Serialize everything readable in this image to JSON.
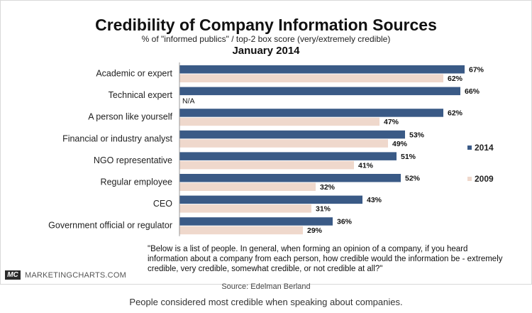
{
  "chart_data": {
    "type": "bar",
    "orientation": "horizontal",
    "title": "Credibility of Company Information Sources",
    "subtitle": "% of \"informed publics\" / top-2 box score (very/extremely credible)",
    "period": "January 2014",
    "categories": [
      "Academic or expert",
      "Technical expert",
      "A person like yourself",
      "Financial or industry analyst",
      "NGO representative",
      "Regular employee",
      "CEO",
      "Government official or regulator"
    ],
    "series": [
      {
        "name": "2014",
        "color": "#3a5a86",
        "values": [
          67,
          66,
          62,
          53,
          51,
          52,
          43,
          36
        ],
        "labels": [
          "67%",
          "66%",
          "62%",
          "53%",
          "51%",
          "52%",
          "43%",
          "36%"
        ]
      },
      {
        "name": "2009",
        "color": "#efd8cc",
        "values": [
          62,
          null,
          47,
          49,
          41,
          32,
          31,
          29
        ],
        "labels": [
          "62%",
          "N/A",
          "47%",
          "49%",
          "41%",
          "32%",
          "31%",
          "29%"
        ]
      }
    ],
    "xlim": [
      0,
      67
    ],
    "grid": false,
    "legend_position": "right"
  },
  "note": "\"Below is a list of people. In general, when forming an opinion of a company, if you heard information about a company from each person, how credible would the information be - extremely credible, very credible, somewhat credible, or not credible at all?\"",
  "brand": {
    "badge": "MC",
    "name": "MARKETINGCHARTS.COM"
  },
  "source": "Source: Edelman Berland",
  "caption": "People considered most credible when speaking about companies."
}
